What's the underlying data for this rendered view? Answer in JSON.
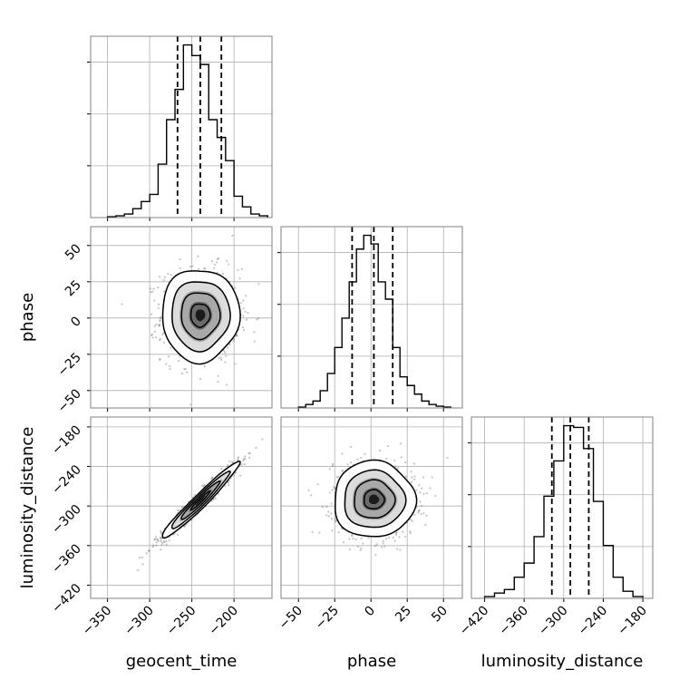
{
  "chart_data": {
    "type": "corner",
    "parameters": [
      "geocent_time",
      "phase",
      "luminosity_distance"
    ],
    "xlabels": [
      "geocent_time",
      "phase",
      "luminosity_distance"
    ],
    "ylabels": [
      "",
      "phase",
      "luminosity_distance"
    ],
    "grid": true,
    "ranges": {
      "geocent_time": [
        -370,
        -155
      ],
      "phase": [
        -62,
        63
      ],
      "luminosity_distance": [
        -440,
        -165
      ]
    },
    "ticks": {
      "geocent_time": [
        -350,
        -300,
        -250,
        -200
      ],
      "phase": [
        -50,
        -25,
        0,
        25,
        50
      ],
      "luminosity_distance": [
        -420,
        -360,
        -300,
        -240,
        -180
      ]
    },
    "tick_labels": {
      "geocent_time": [
        "−350",
        "−300",
        "−250",
        "−200"
      ],
      "phase": [
        "−50",
        "−25",
        "0",
        "25",
        "50"
      ],
      "luminosity_distance": [
        "−420",
        "−360",
        "−300",
        "−240",
        "−180"
      ]
    },
    "quantiles": {
      "geocent_time": [
        -267,
        -240,
        -215
      ],
      "phase": [
        -13,
        2,
        15
      ],
      "luminosity_distance": [
        -318,
        -290,
        -262
      ]
    },
    "histograms": {
      "geocent_time": {
        "edges": [
          -350,
          -340,
          -330,
          -320,
          -310,
          -300,
          -290,
          -280,
          -270,
          -260,
          -250,
          -240,
          -230,
          -220,
          -210,
          -200,
          -190,
          -180,
          -170,
          -160
        ],
        "counts": [
          0.005,
          0.01,
          0.02,
          0.05,
          0.09,
          0.13,
          0.3,
          0.55,
          0.72,
          0.97,
          0.91,
          0.86,
          0.55,
          0.45,
          0.32,
          0.12,
          0.06,
          0.02,
          0.01
        ]
      },
      "phase": {
        "edges": [
          -50,
          -45,
          -40,
          -35,
          -30,
          -25,
          -20,
          -15,
          -10,
          -5,
          0,
          5,
          10,
          15,
          20,
          25,
          30,
          35,
          40,
          45,
          50,
          55
        ],
        "counts": [
          0.005,
          0.02,
          0.04,
          0.1,
          0.2,
          0.35,
          0.52,
          0.73,
          0.92,
          1.0,
          0.95,
          0.73,
          0.63,
          0.35,
          0.18,
          0.13,
          0.08,
          0.04,
          0.02,
          0.01,
          0.005
        ]
      },
      "luminosity_distance": {
        "edges": [
          -420,
          -405,
          -390,
          -375,
          -360,
          -345,
          -330,
          -315,
          -300,
          -285,
          -270,
          -255,
          -240,
          -225,
          -210,
          -195,
          -180
        ],
        "counts": [
          0.01,
          0.03,
          0.05,
          0.12,
          0.2,
          0.35,
          0.58,
          0.78,
          0.98,
          0.97,
          0.85,
          0.55,
          0.3,
          0.12,
          0.04,
          0.01
        ]
      }
    },
    "pairs": [
      {
        "x": "geocent_time",
        "y": "phase",
        "mean": [
          -240,
          2
        ],
        "sd": [
          23,
          16
        ],
        "corr": 0
      },
      {
        "x": "geocent_time",
        "y": "luminosity_distance",
        "mean": [
          -240,
          -292
        ],
        "sd": [
          23,
          29
        ],
        "corr": 0.97
      },
      {
        "x": "phase",
        "y": "luminosity_distance",
        "mean": [
          2,
          -290
        ],
        "sd": [
          14,
          29
        ],
        "corr": 0
      }
    ]
  }
}
